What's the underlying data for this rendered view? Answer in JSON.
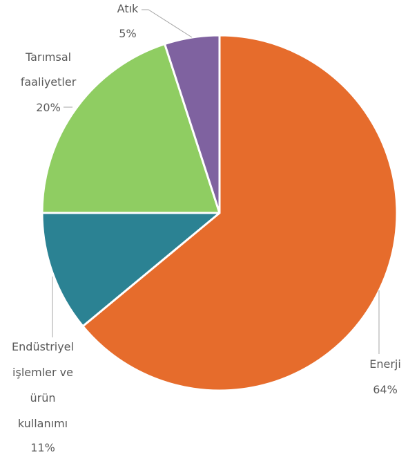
{
  "chart_data": {
    "type": "pie",
    "title": "",
    "slices": [
      {
        "name": "Enerji",
        "value": 64,
        "value_label": "64%",
        "color": "#e66c2c",
        "label_lines": [
          "Enerji"
        ]
      },
      {
        "name": "Endüstriyel işlemler ve ürün kullanımı",
        "value": 11,
        "value_label": "11%",
        "color": "#2b8293",
        "label_lines": [
          "Endüstriyel",
          "işlemler ve",
          "ürün",
          "kullanımı"
        ]
      },
      {
        "name": "Tarımsal faaliyetler",
        "value": 20,
        "value_label": "20%",
        "color": "#8fcd62",
        "label_lines": [
          "Tarımsal",
          "faaliyetler"
        ]
      },
      {
        "name": "Atık",
        "value": 5,
        "value_label": "5%",
        "color": "#7f62a0",
        "label_lines": [
          "Atık"
        ]
      }
    ],
    "start": "top",
    "direction": "clockwise",
    "legend": "none",
    "label_position": "outside with leader lines"
  }
}
